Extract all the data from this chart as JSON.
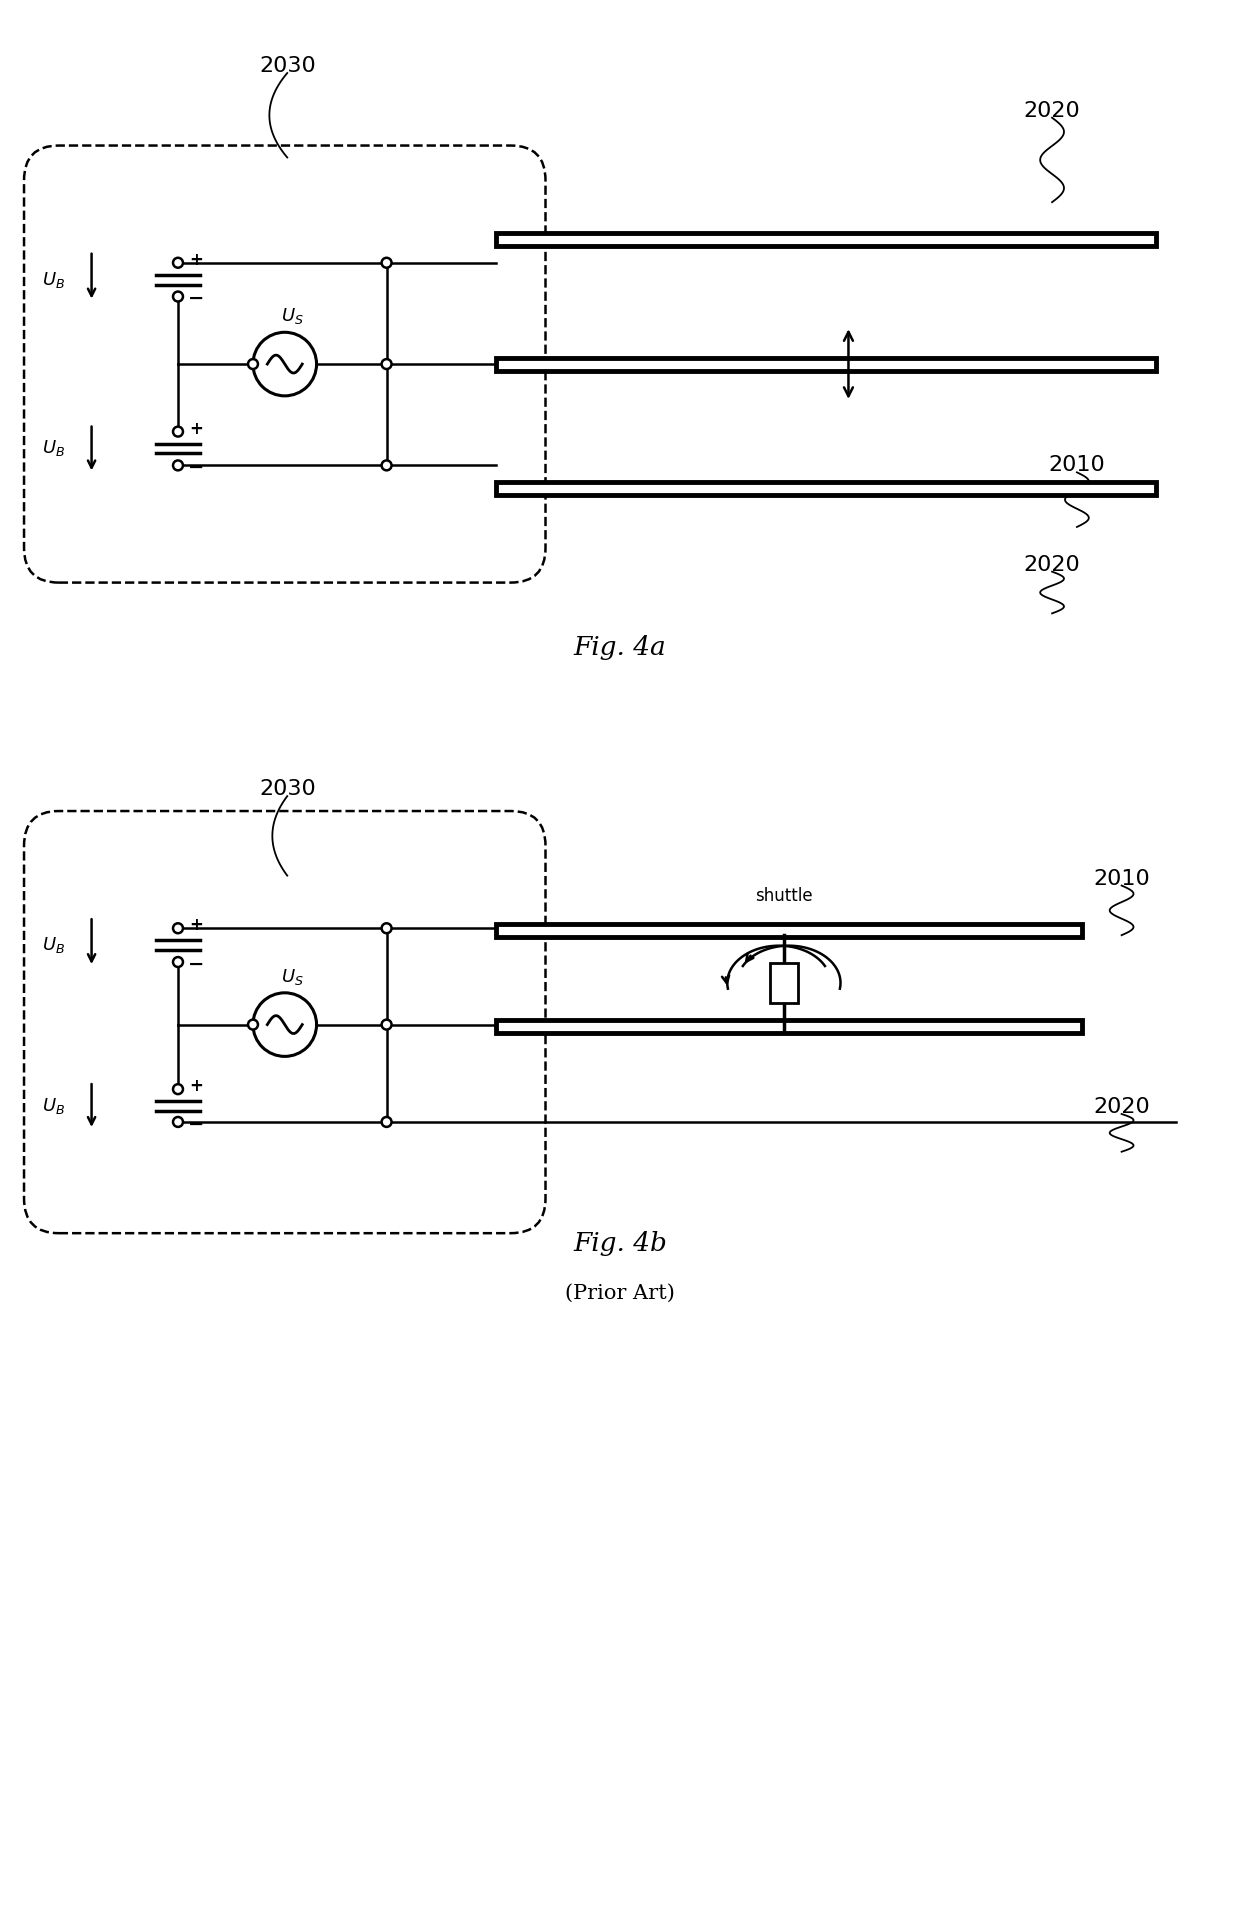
{
  "fig_width": 12.4,
  "fig_height": 19.3,
  "bg_color": "#ffffff",
  "line_color": "#000000",
  "fig4a_label": "Fig. 4a",
  "fig4b_label": "Fig. 4b",
  "fig4b_sublabel": "(Prior Art)",
  "label_2030_a": "2030",
  "label_2020_a_top": "2020",
  "label_2020_a_bot": "2020",
  "label_2010_a": "2010",
  "label_2030_b": "2030",
  "label_2010_b": "2010",
  "label_2020_b": "2020",
  "label_shuttle_b": "shuttle"
}
